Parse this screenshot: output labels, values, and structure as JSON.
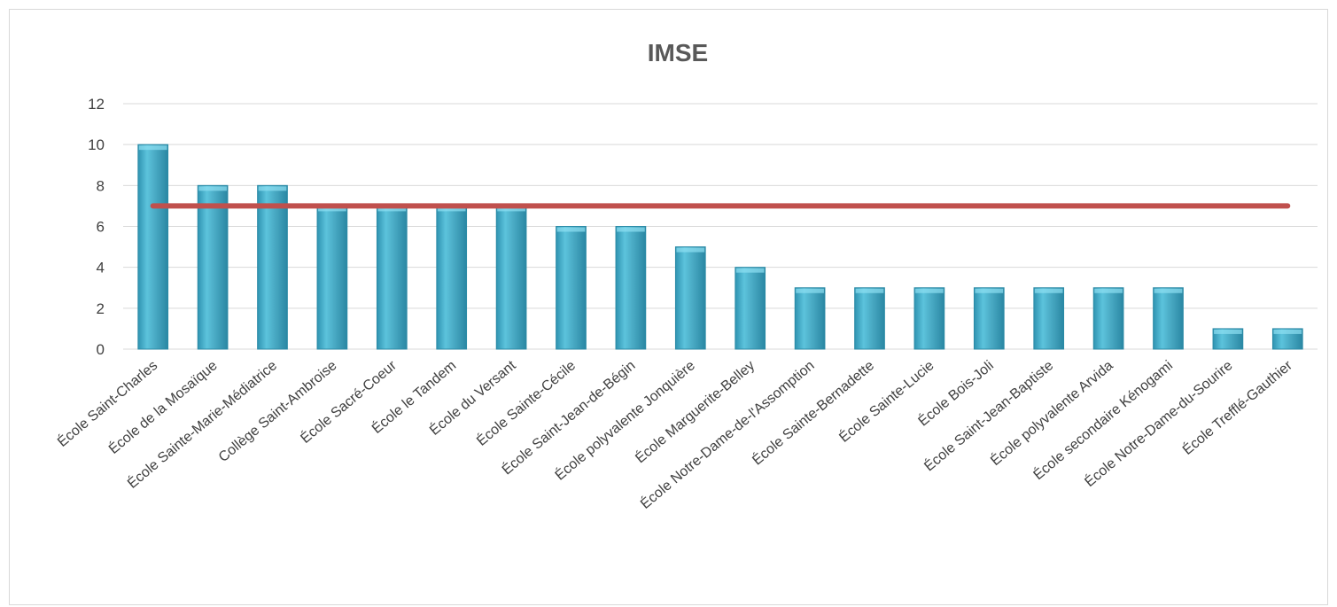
{
  "chart_data": {
    "type": "bar",
    "title": "IMSE",
    "xlabel": "",
    "ylabel": "",
    "ylim": [
      0,
      12
    ],
    "yticks": [
      0,
      2,
      4,
      6,
      8,
      10,
      12
    ],
    "grid": true,
    "legend": "none",
    "categories": [
      "École Saint-Charles",
      "École de la Mosaïque",
      "École Sainte-Marie-Médiatrice",
      "Collège Saint-Ambroise",
      "École Sacré-Coeur",
      "École le Tandem",
      "École du Versant",
      "École Sainte-Cécile",
      "École Saint-Jean-de-Bégin",
      "École polyvalente Jonquière",
      "École Marguerite-Belley",
      "École Notre-Dame-de-l'Assomption",
      "École Sainte-Bernadette",
      "École Sainte-Lucie",
      "École Bois-Joli",
      "École Saint-Jean-Baptiste",
      "École polyvalente Arvida",
      "École secondaire Kénogami",
      "École Notre-Dame-du-Sourire",
      "École Trefflé-Gauthier"
    ],
    "series": [
      {
        "type": "bar",
        "values": [
          10,
          8,
          8,
          7,
          7,
          7,
          7,
          6,
          6,
          5,
          4,
          3,
          3,
          3,
          3,
          3,
          3,
          3,
          1,
          1
        ]
      },
      {
        "type": "line",
        "values": [
          7,
          7,
          7,
          7,
          7,
          7,
          7,
          7,
          7,
          7,
          7,
          7,
          7,
          7,
          7,
          7,
          7,
          7,
          7,
          7
        ]
      }
    ],
    "colors": {
      "bar": "#4bacc6",
      "bar_edge": "#2b8aa6",
      "line": "#c0504d",
      "grid": "#d9d9d9"
    }
  }
}
